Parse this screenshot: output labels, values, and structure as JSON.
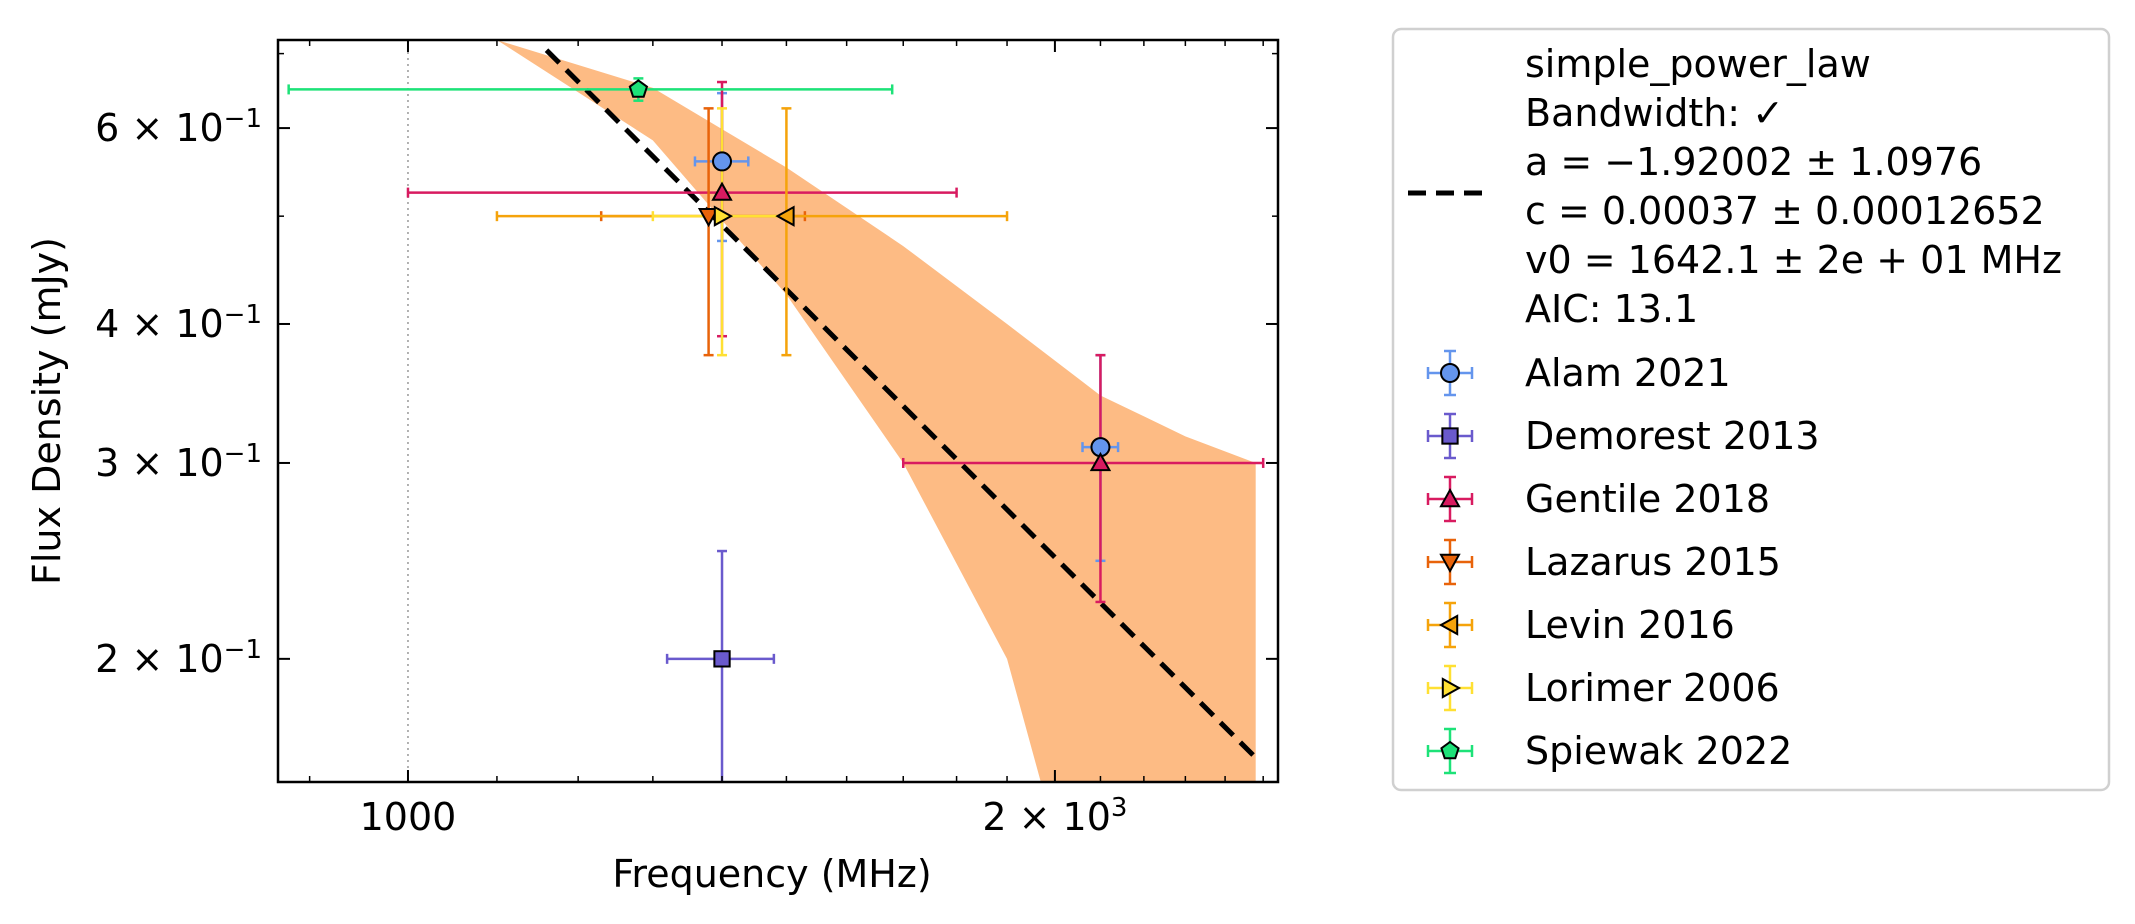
{
  "chart_data": {
    "type": "scatter",
    "xlabel": "Frequency (MHz)",
    "ylabel": "Flux Density (mJy)",
    "xscale": "log",
    "yscale": "log",
    "xlim": [
      870,
      2540
    ],
    "ylim": [
      0.155,
      0.72
    ],
    "xticks": [
      {
        "value": 1000,
        "label": "1000",
        "sup": ""
      },
      {
        "value": 2000,
        "label": "2 × 10",
        "sup": "3"
      }
    ],
    "yticks": [
      {
        "value": 0.2,
        "label": "2 × 10",
        "sup": "−1"
      },
      {
        "value": 0.3,
        "label": "3 × 10",
        "sup": "−1"
      },
      {
        "value": 0.4,
        "label": "4 × 10",
        "sup": "−1"
      },
      {
        "value": 0.6,
        "label": "6 × 10",
        "sup": "−1"
      }
    ],
    "minor_xticks": [
      900,
      1100,
      1200,
      1300,
      1400,
      1500,
      1600,
      1700,
      1800,
      1900,
      2100,
      2200,
      2300,
      2400,
      2500
    ],
    "minor_yticks": [
      0.5,
      0.7
    ],
    "reference_line_x": 1000,
    "fit": {
      "label": "simple_power_law",
      "bandwidth_label": "Bandwidth: ✓",
      "params": [
        "a = −1.92002 ± 1.0976",
        "c = 0.00037 ± 0.00012652",
        "v0 = 1642.1 ± 2e + 01 MHz"
      ],
      "aic_label": "AIC: 13.1",
      "x": [
        1160,
        2480
      ],
      "y": [
        0.705,
        0.163
      ],
      "band_upper": [
        [
          1040,
          0.72
        ],
        [
          1100,
          0.72
        ],
        [
          1300,
          0.652
        ],
        [
          1500,
          0.553
        ],
        [
          1700,
          0.47
        ],
        [
          1900,
          0.4
        ],
        [
          2100,
          0.345
        ],
        [
          2300,
          0.317
        ],
        [
          2480,
          0.3
        ]
      ],
      "band_lower": [
        [
          1040,
          0.72
        ],
        [
          1100,
          0.72
        ],
        [
          1300,
          0.585
        ],
        [
          1500,
          0.425
        ],
        [
          1700,
          0.3
        ],
        [
          1900,
          0.2
        ],
        [
          1970,
          0.155
        ],
        [
          2480,
          0.155
        ]
      ],
      "line_color": "#000000",
      "band_color": "#fdbb84"
    },
    "series": [
      {
        "name": "Alam 2021",
        "color": "#6495ed",
        "marker": "circle",
        "points": [
          {
            "x": 1400,
            "y": 0.56,
            "xerr": [
              40,
              40
            ],
            "yerr": [
              0.085,
              0.085
            ]
          },
          {
            "x": 2100,
            "y": 0.31,
            "xerr": [
              40,
              40
            ],
            "yerr": [
              0.065,
              0.065
            ]
          }
        ]
      },
      {
        "name": "Demorest 2013",
        "color": "#6a5acd",
        "marker": "square",
        "points": [
          {
            "x": 1400,
            "y": 0.2,
            "xerr": [
              80,
              80
            ],
            "yerr": [
              0.05,
              0.05
            ]
          }
        ]
      },
      {
        "name": "Gentile 2018",
        "color": "#d81b60",
        "marker": "triangle-up",
        "points": [
          {
            "x": 1400,
            "y": 0.525,
            "xerr": [
              400,
              400
            ],
            "yerr": [
              0.135,
              0.135
            ]
          },
          {
            "x": 2100,
            "y": 0.3,
            "xerr": [
              400,
              400
            ],
            "yerr": [
              0.075,
              0.075
            ]
          }
        ]
      },
      {
        "name": "Lazarus 2015",
        "color": "#e8630a",
        "marker": "triangle-down",
        "points": [
          {
            "x": 1380,
            "y": 0.5,
            "xerr": [
              150,
              150
            ],
            "yerr": [
              0.125,
              0.125
            ]
          }
        ]
      },
      {
        "name": "Levin 2016",
        "color": "#f5a30b",
        "marker": "triangle-left",
        "points": [
          {
            "x": 1500,
            "y": 0.5,
            "xerr": [
              400,
              400
            ],
            "yerr": [
              0.125,
              0.125
            ]
          }
        ]
      },
      {
        "name": "Lorimer 2006",
        "color": "#ffe033",
        "marker": "triangle-right",
        "points": [
          {
            "x": 1400,
            "y": 0.5,
            "xerr": [
              100,
              100
            ],
            "yerr": [
              0.125,
              0.125
            ]
          }
        ]
      },
      {
        "name": "Spiewak 2022",
        "color": "#1de278",
        "marker": "pentagon",
        "points": [
          {
            "x": 1280,
            "y": 0.65,
            "xerr": [
              400,
              400
            ],
            "yerr": [
              0.015,
              0.015
            ]
          }
        ]
      }
    ],
    "legend": {
      "position": "outside-right"
    }
  }
}
